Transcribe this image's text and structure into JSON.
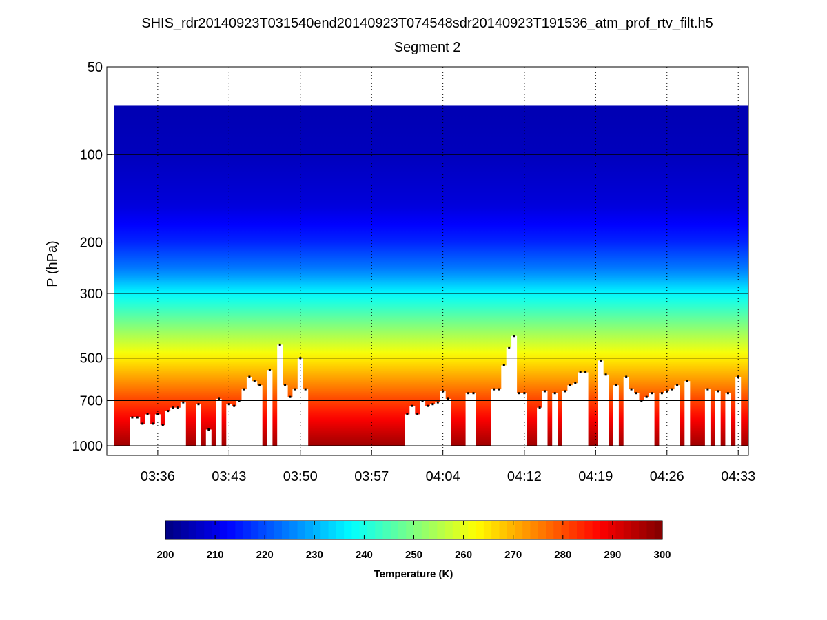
{
  "chart_data": {
    "type": "heatmap",
    "title": "SHIS_rdr20140923T031540end20140923T074548sdr20140923T191536_atm_prof_rtv_filt.h5",
    "subtitle": "Segment 2",
    "ylabel": "P (hPa)",
    "yscale": "log",
    "yreversed": true,
    "ylim": [
      50,
      1000
    ],
    "yticks": [
      50,
      100,
      200,
      300,
      500,
      700,
      1000
    ],
    "xlim": [
      "03:31",
      "04:34"
    ],
    "xticks": [
      "03:36",
      "03:43",
      "03:50",
      "03:57",
      "04:04",
      "04:12",
      "04:19",
      "04:26",
      "04:33"
    ],
    "grid": "dotted-x, solid-y",
    "data_top_pressure": 68,
    "colorbar": {
      "label": "Temperature (K)",
      "range": [
        200,
        300
      ],
      "ticks": [
        200,
        210,
        220,
        230,
        240,
        250,
        260,
        270,
        280,
        290,
        300
      ],
      "colormap": "jet",
      "placement": "bottom"
    },
    "temperature_profile": {
      "pressure_hPa": [
        68,
        100,
        150,
        200,
        250,
        300,
        400,
        500,
        600,
        700,
        850,
        1000
      ],
      "temperature_K": [
        205,
        206,
        209,
        216,
        225,
        237,
        252,
        264,
        273,
        281,
        290,
        297
      ]
    },
    "cloud_mask": {
      "description": "Columns blanked (white) below cloud top; black dots mark retrieved cloud-top pressure",
      "time_min": [
        33.5,
        34.0,
        34.5,
        35.0,
        35.5,
        36.0,
        36.5,
        37.0,
        37.5,
        38.0,
        38.5,
        40.0,
        41.0,
        42.0,
        43.0,
        43.5,
        44.0,
        44.5,
        45.0,
        45.5,
        46.0,
        47.0,
        48.0,
        48.5,
        49.0,
        49.5,
        50.0,
        50.5,
        60.5,
        61.0,
        61.5,
        62.0,
        62.5,
        63.0,
        63.5,
        64.0,
        64.5,
        66.5,
        67.0,
        69.0,
        69.5,
        70.0,
        70.5,
        71.0,
        71.5,
        72.0,
        73.5,
        74.0,
        75.0,
        76.0,
        76.5,
        77.0,
        77.5,
        78.0,
        79.5,
        80.0,
        81.0,
        82.0,
        82.5,
        83.0,
        83.5,
        84.0,
        84.5,
        85.5,
        86.0,
        86.5,
        87.0,
        88.0,
        90.0,
        91.0,
        92.0,
        93.0
      ],
      "cloud_top_hPa": [
        800,
        800,
        840,
        780,
        840,
        780,
        850,
        760,
        740,
        740,
        710,
        720,
        880,
        690,
        720,
        730,
        700,
        640,
        580,
        600,
        620,
        550,
        450,
        620,
        680,
        640,
        500,
        640,
        780,
        730,
        780,
        700,
        730,
        720,
        710,
        650,
        690,
        660,
        660,
        640,
        640,
        530,
        460,
        420,
        660,
        660,
        740,
        650,
        660,
        650,
        620,
        610,
        560,
        560,
        510,
        570,
        620,
        580,
        640,
        660,
        700,
        680,
        660,
        660,
        650,
        640,
        620,
        600,
        640,
        650,
        660,
        580
      ]
    }
  }
}
